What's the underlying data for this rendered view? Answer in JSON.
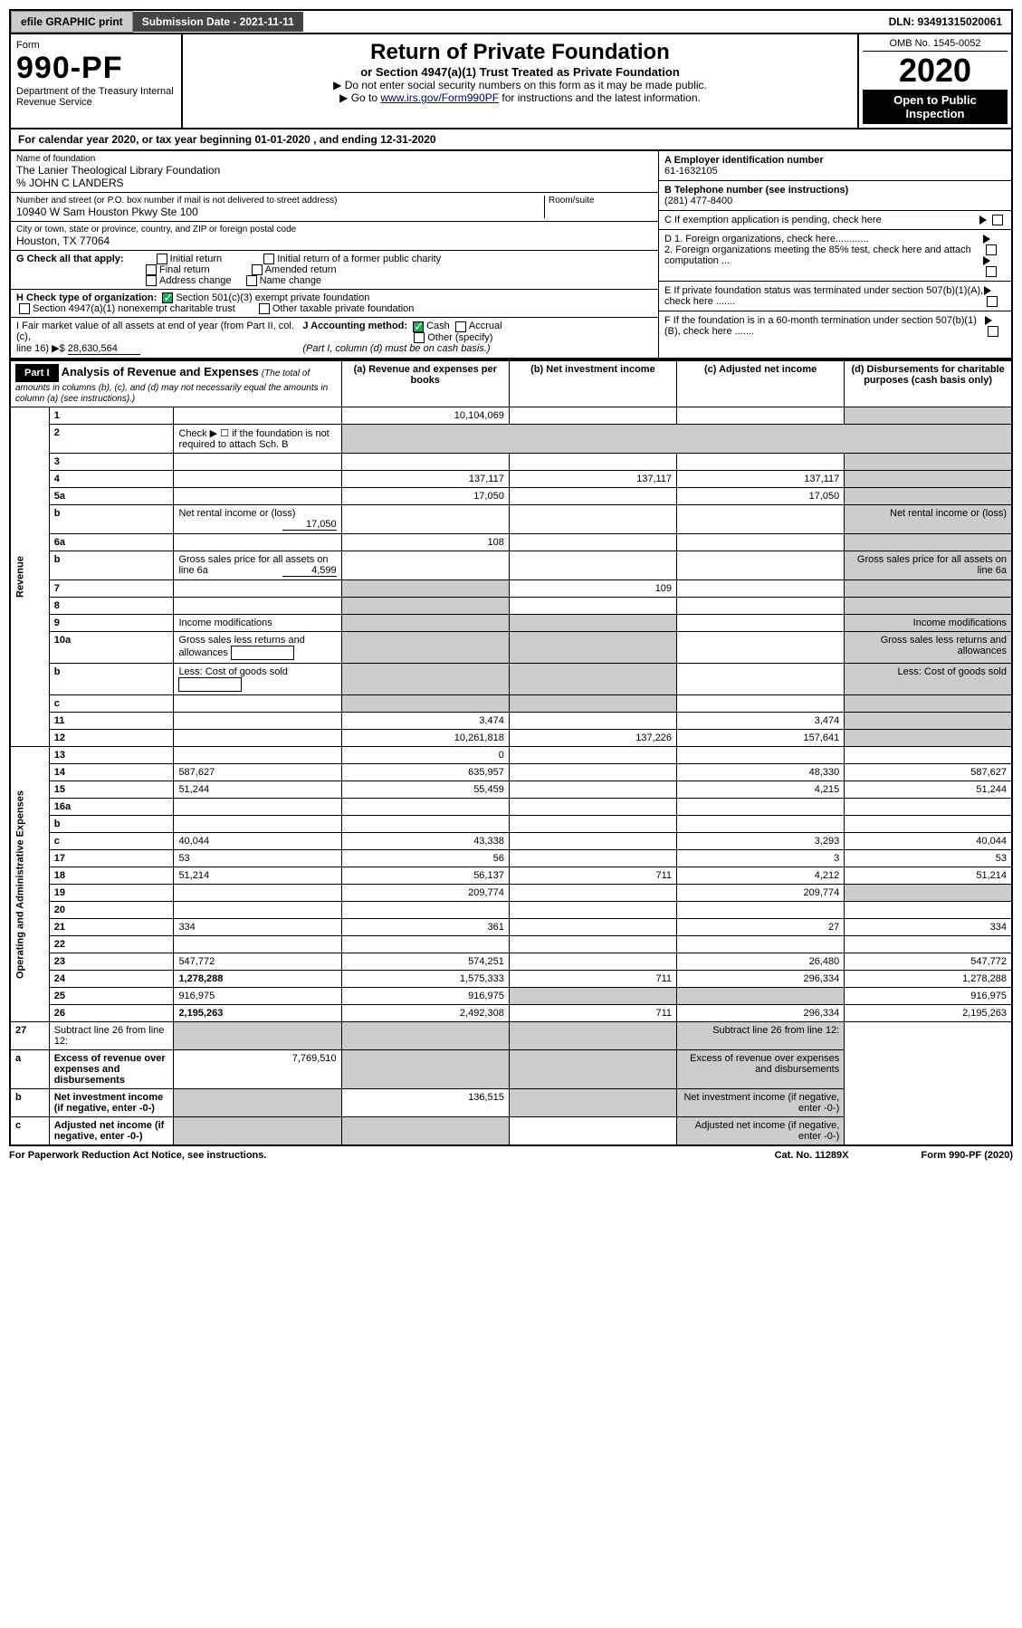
{
  "top": {
    "efile": "efile GRAPHIC print",
    "submission": "Submission Date - 2021-11-11",
    "dln": "DLN: 93491315020061"
  },
  "header": {
    "form_label": "Form",
    "form_num": "990-PF",
    "dept": "Department of the Treasury\nInternal Revenue Service",
    "title": "Return of Private Foundation",
    "subtitle": "or Section 4947(a)(1) Trust Treated as Private Foundation",
    "note1": "▶ Do not enter social security numbers on this form as it may be made public.",
    "note2": "▶ Go to ",
    "link": "www.irs.gov/Form990PF",
    "note3": " for instructions and the latest information.",
    "omb": "OMB No. 1545-0052",
    "year": "2020",
    "inspect": "Open to Public Inspection"
  },
  "calyear": "For calendar year 2020, or tax year beginning 01-01-2020                              , and ending 12-31-2020",
  "entity": {
    "name_lbl": "Name of foundation",
    "name": "The Lanier Theological Library Foundation",
    "co": "% JOHN C LANDERS",
    "addr_lbl": "Number and street (or P.O. box number if mail is not delivered to street address)",
    "addr": "10940 W Sam Houston Pkwy Ste 100",
    "room_lbl": "Room/suite",
    "city_lbl": "City or town, state or province, country, and ZIP or foreign postal code",
    "city": "Houston, TX  77064"
  },
  "right_info": {
    "a_lbl": "A Employer identification number",
    "a_val": "61-1632105",
    "b_lbl": "B Telephone number (see instructions)",
    "b_val": "(281) 477-8400",
    "c_lbl": "C If exemption application is pending, check here",
    "d1": "D 1. Foreign organizations, check here............",
    "d2": "2. Foreign organizations meeting the 85% test, check here and attach computation ...",
    "e": "E If private foundation status was terminated under section 507(b)(1)(A), check here .......",
    "f": "F If the foundation is in a 60-month termination under section 507(b)(1)(B), check here ......."
  },
  "checks": {
    "g": "G Check all that apply:",
    "g_items": [
      "Initial return",
      "Final return",
      "Address change",
      "Initial return of a former public charity",
      "Amended return",
      "Name change"
    ],
    "h": "H Check type of organization:",
    "h1": "Section 501(c)(3) exempt private foundation",
    "h2": "Section 4947(a)(1) nonexempt charitable trust",
    "h3": "Other taxable private foundation",
    "i1": "I Fair market value of all assets at end of year (from Part II, col. (c),",
    "i2": "line 16) ▶$ ",
    "i_val": "28,630,564",
    "j": "J Accounting method:",
    "j1": "Cash",
    "j2": "Accrual",
    "j3": "Other (specify)",
    "j_note": "(Part I, column (d) must be on cash basis.)"
  },
  "part1": {
    "hdr": "Part I",
    "title": "Analysis of Revenue and Expenses",
    "title_note": "(The total of amounts in columns (b), (c), and (d) may not necessarily equal the amounts in column (a) (see instructions).)",
    "cols": {
      "a": "(a)   Revenue and expenses per books",
      "b": "(b)   Net investment income",
      "c": "(c)   Adjusted net income",
      "d": "(d)   Disbursements for charitable purposes (cash basis only)"
    }
  },
  "sections": {
    "revenue": "Revenue",
    "expenses": "Operating and Administrative Expenses"
  },
  "rows": [
    {
      "n": "1",
      "d": "",
      "a": "10,104,069",
      "b": "",
      "c": "",
      "ds": true
    },
    {
      "n": "2",
      "d": "Check ▶ ☐ if the foundation is not required to attach Sch. B",
      "inline": true
    },
    {
      "n": "3",
      "d": "",
      "a": "",
      "b": "",
      "c": "",
      "ds": true
    },
    {
      "n": "4",
      "d": "",
      "a": "137,117",
      "b": "137,117",
      "c": "137,117",
      "ds": true
    },
    {
      "n": "5a",
      "d": "",
      "a": "17,050",
      "b": "",
      "c": "17,050",
      "ds": true
    },
    {
      "n": "b",
      "d": "Net rental income or (loss)",
      "box": "17,050",
      "ds": true
    },
    {
      "n": "6a",
      "d": "",
      "a": "108",
      "b": "",
      "c": "",
      "ds": true
    },
    {
      "n": "b",
      "d": "Gross sales price for all assets on line 6a",
      "box": "4,599",
      "ds": true
    },
    {
      "n": "7",
      "d": "",
      "a": "",
      "b": "109",
      "c": "",
      "as": true,
      "ds": true
    },
    {
      "n": "8",
      "d": "",
      "a": "",
      "b": "",
      "c": "",
      "as": true,
      "ds": true
    },
    {
      "n": "9",
      "d": "Income modifications",
      "as": true,
      "bs": true,
      "ds": true
    },
    {
      "n": "10a",
      "d": "Gross sales less returns and allowances",
      "ibox": true,
      "as": true,
      "bs": true,
      "ds": true
    },
    {
      "n": "b",
      "d": "Less: Cost of goods sold",
      "ibox": true,
      "as": true,
      "bs": true,
      "ds": true
    },
    {
      "n": "c",
      "d": "",
      "a": "",
      "b": "",
      "c": "",
      "as": true,
      "bs": true,
      "ds": true
    },
    {
      "n": "11",
      "d": "",
      "a": "3,474",
      "b": "",
      "c": "3,474",
      "ds": true
    },
    {
      "n": "12",
      "d": "",
      "a": "10,261,818",
      "b": "137,226",
      "c": "157,641",
      "ds": true,
      "bold": true
    }
  ],
  "exp_rows": [
    {
      "n": "13",
      "d": "",
      "a": "0",
      "b": "",
      "c": ""
    },
    {
      "n": "14",
      "d": "587,627",
      "a": "635,957",
      "b": "",
      "c": "48,330"
    },
    {
      "n": "15",
      "d": "51,244",
      "a": "55,459",
      "b": "",
      "c": "4,215"
    },
    {
      "n": "16a",
      "d": "",
      "a": "",
      "b": "",
      "c": ""
    },
    {
      "n": "b",
      "d": "",
      "a": "",
      "b": "",
      "c": ""
    },
    {
      "n": "c",
      "d": "40,044",
      "a": "43,338",
      "b": "",
      "c": "3,293"
    },
    {
      "n": "17",
      "d": "53",
      "a": "56",
      "b": "",
      "c": "3"
    },
    {
      "n": "18",
      "d": "51,214",
      "a": "56,137",
      "b": "711",
      "c": "4,212"
    },
    {
      "n": "19",
      "d": "",
      "a": "209,774",
      "b": "",
      "c": "209,774",
      "ds": true
    },
    {
      "n": "20",
      "d": "",
      "a": "",
      "b": "",
      "c": ""
    },
    {
      "n": "21",
      "d": "334",
      "a": "361",
      "b": "",
      "c": "27"
    },
    {
      "n": "22",
      "d": "",
      "a": "",
      "b": "",
      "c": ""
    },
    {
      "n": "23",
      "d": "547,772",
      "a": "574,251",
      "b": "",
      "c": "26,480"
    },
    {
      "n": "24",
      "d": "1,278,288",
      "a": "1,575,333",
      "b": "711",
      "c": "296,334",
      "bold": true
    },
    {
      "n": "25",
      "d": "916,975",
      "a": "916,975",
      "b": "",
      "c": "",
      "bs": true,
      "cs": true
    },
    {
      "n": "26",
      "d": "2,195,263",
      "a": "2,492,308",
      "b": "711",
      "c": "296,334",
      "bold": true
    }
  ],
  "final_rows": [
    {
      "n": "27",
      "d": "Subtract line 26 from line 12:",
      "as": true,
      "bs": true,
      "cs": true,
      "ds": true
    },
    {
      "n": "a",
      "d": "Excess of revenue over expenses and disbursements",
      "a": "7,769,510",
      "bs": true,
      "cs": true,
      "ds": true,
      "bold": true
    },
    {
      "n": "b",
      "d": "Net investment income (if negative, enter -0-)",
      "b": "136,515",
      "as": true,
      "cs": true,
      "ds": true,
      "bold": true
    },
    {
      "n": "c",
      "d": "Adjusted net income (if negative, enter -0-)",
      "as": true,
      "bs": true,
      "ds": true,
      "bold": true
    }
  ],
  "footer": {
    "left": "For Paperwork Reduction Act Notice, see instructions.",
    "mid": "Cat. No. 11289X",
    "right": "Form 990-PF (2020)"
  }
}
